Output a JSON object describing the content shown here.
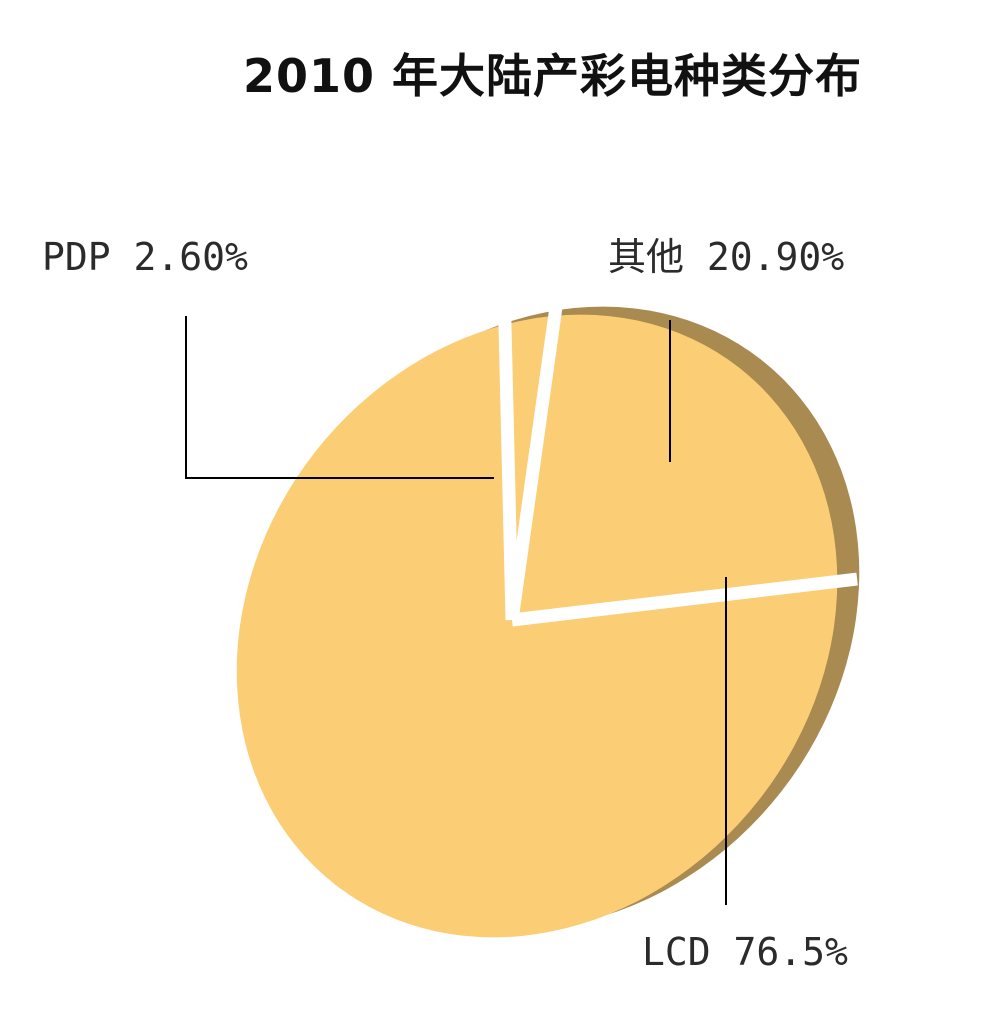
{
  "title": "2010 年大陆产彩电种类分布",
  "chart_data": {
    "type": "pie",
    "title": "2010 年大陆产彩电种类分布",
    "slices": [
      {
        "label": "其他",
        "value": 20.9,
        "display": "其他  20.90%"
      },
      {
        "label": "LCD",
        "value": 76.5,
        "display": "LCD 76.5%"
      },
      {
        "label": "PDP",
        "value": 2.6,
        "display": "PDP 2.60%"
      }
    ],
    "style": "3d-exploded",
    "legend": "none",
    "colors": {
      "slice": "#FBCD74",
      "shadow": "#A98A51",
      "separator": "#FFFFFF",
      "leader": "#000000"
    }
  }
}
